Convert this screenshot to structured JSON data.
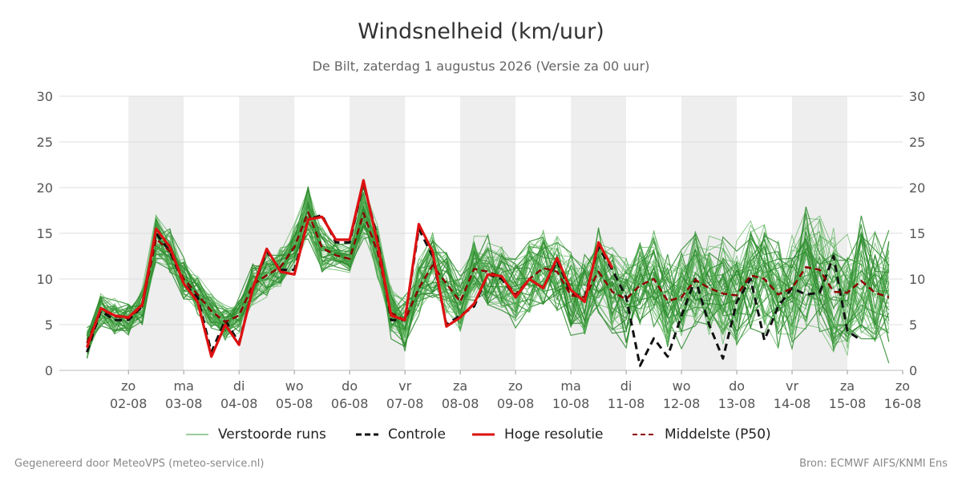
{
  "header": {
    "title": "Windsnelheid (km/uur)",
    "subtitle": "De Bilt, zaterdag  1 augustus 2026 (Versie za 00 uur)"
  },
  "footer": {
    "left": "Gegenereerd door MeteoVPS (meteo-service.nl)",
    "right": "Bron: ECMWF AIFS/KNMI Ens"
  },
  "legend": [
    {
      "label": "Verstoorde runs"
    },
    {
      "label": "Controle"
    },
    {
      "label": "Hoge resolutie"
    },
    {
      "label": "Middelste (P50)"
    }
  ],
  "colors": {
    "perturbed": "#3a9a3a",
    "control": "#111111",
    "high_res": "#dd1111",
    "median": "#8b0000",
    "weekend_band": "#eeeeee",
    "grid": "#dddddd"
  },
  "chart_data": {
    "type": "line",
    "title": "Windsnelheid (km/uur)",
    "subtitle": "De Bilt, zaterdag  1 augustus 2026 (Versie za 00 uur)",
    "ylim": [
      0,
      30
    ],
    "yticks": [
      0,
      5,
      10,
      15,
      20,
      25,
      30
    ],
    "x_range_days": [
      -1.25,
      14.0
    ],
    "x_unit": "days since 02-08 00 uur",
    "grid": true,
    "legend_position": "bottom",
    "shaded_day_bands": [
      [
        0,
        1
      ],
      [
        2,
        3
      ],
      [
        4,
        5
      ],
      [
        6,
        7
      ],
      [
        8,
        9
      ],
      [
        10,
        11
      ],
      [
        12,
        13
      ]
    ],
    "x_tick_labels": [
      {
        "day": "zo",
        "date": "02-08"
      },
      {
        "day": "ma",
        "date": "03-08"
      },
      {
        "day": "di",
        "date": "04-08"
      },
      {
        "day": "wo",
        "date": "05-08"
      },
      {
        "day": "do",
        "date": "06-08"
      },
      {
        "day": "vr",
        "date": "07-08"
      },
      {
        "day": "za",
        "date": "08-08"
      },
      {
        "day": "zo",
        "date": "09-08"
      },
      {
        "day": "ma",
        "date": "10-08"
      },
      {
        "day": "di",
        "date": "11-08"
      },
      {
        "day": "wo",
        "date": "12-08"
      },
      {
        "day": "do",
        "date": "13-08"
      },
      {
        "day": "vr",
        "date": "14-08"
      },
      {
        "day": "za",
        "date": "15-08"
      },
      {
        "day": "zo",
        "date": "16-08"
      }
    ],
    "x_start": -0.75,
    "x_step": 0.25,
    "series": [
      {
        "name": "Hoge resolutie",
        "type": "high_res",
        "x_start": -0.75,
        "x_step": 0.25,
        "values": [
          2.5,
          6.8,
          6.0,
          5.8,
          7.2,
          15.5,
          13.5,
          9.5,
          7.5,
          1.5,
          5.0,
          2.8,
          9.0,
          13.3,
          10.8,
          10.5,
          16.5,
          16.8,
          14.3,
          14.3,
          20.8,
          14.0,
          6.0,
          5.5,
          16.0,
          13.0,
          4.8,
          5.8,
          7.3,
          10.5,
          10.3,
          8.0,
          10.0,
          9.0,
          12.3,
          8.8,
          7.5,
          14.0,
          11.2
        ]
      },
      {
        "name": "Controle",
        "type": "control",
        "x_start": -0.75,
        "x_step": 0.25,
        "values": [
          2.0,
          6.5,
          5.5,
          5.5,
          7.0,
          15.0,
          13.0,
          9.5,
          8.0,
          2.0,
          5.5,
          3.0,
          9.0,
          13.0,
          11.0,
          11.0,
          16.5,
          17.0,
          14.0,
          14.0,
          20.5,
          14.5,
          5.5,
          5.5,
          15.5,
          12.5,
          5.0,
          6.0,
          7.0,
          10.5,
          10.0,
          8.0,
          10.0,
          9.0,
          12.0,
          8.5,
          8.0,
          13.5,
          11.0,
          8.0,
          0.5,
          3.5,
          1.5,
          6.0,
          10.0,
          5.0,
          1.3,
          7.5,
          10.0,
          3.3,
          7.0,
          9.0,
          8.3,
          8.5,
          12.5,
          4.3,
          3.3
        ]
      },
      {
        "name": "Middelste (P50)",
        "type": "median",
        "x_start": -0.75,
        "x_step": 0.25,
        "values": [
          3.0,
          6.7,
          5.9,
          5.7,
          7.0,
          14.4,
          13.0,
          10.0,
          8.3,
          6.5,
          5.3,
          6.0,
          9.4,
          10.4,
          11.3,
          13.5,
          17.3,
          13.4,
          12.6,
          12.2,
          17.2,
          13.0,
          6.3,
          5.5,
          9.0,
          11.5,
          9.5,
          7.5,
          11.1,
          10.8,
          10.2,
          8.3,
          10.0,
          11.2,
          10.8,
          8.2,
          8.0,
          10.8,
          8.6,
          7.8,
          9.3,
          10.0,
          7.6,
          8.0,
          9.9,
          9.0,
          8.4,
          8.2,
          10.4,
          10.0,
          8.3,
          9.0,
          11.3,
          11.0,
          8.6,
          8.5,
          9.8,
          8.5,
          8.0
        ]
      }
    ],
    "ensemble_series_count": 50,
    "ensemble_note": "Verstoorde runs"
  }
}
